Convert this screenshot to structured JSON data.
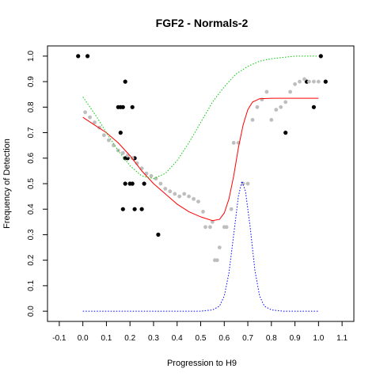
{
  "chart_data": {
    "type": "scatter",
    "title": "FGF2 - Normals-2",
    "xlabel": "Progression to H9",
    "ylabel": "Frequency of Detection",
    "xlim": [
      -0.15,
      1.15
    ],
    "ylim": [
      -0.04,
      1.04
    ],
    "x_ticks": [
      -0.1,
      0.0,
      0.1,
      0.2,
      0.3,
      0.4,
      0.5,
      0.6,
      0.7,
      0.8,
      0.9,
      1.0,
      1.1
    ],
    "x_tick_labels": [
      "-0.1",
      "0.0",
      "0.1",
      "0.2",
      "0.3",
      "0.4",
      "0.5",
      "0.6",
      "0.7",
      "0.8",
      "0.9",
      "1.0",
      "1.1"
    ],
    "y_ticks": [
      0.0,
      0.1,
      0.2,
      0.3,
      0.4,
      0.5,
      0.6,
      0.7,
      0.8,
      0.9,
      1.0
    ],
    "y_tick_labels": [
      "0.0",
      "0.1",
      "0.2",
      "0.3",
      "0.4",
      "0.5",
      "0.6",
      "0.7",
      "0.8",
      "0.9",
      "1.0"
    ],
    "colors": {
      "observed": "#000000",
      "smoothed": "#bebebe",
      "fit": "#ff0000",
      "upper_band": "#00cc00",
      "density": "#0000ff"
    },
    "series": [
      {
        "kind": "points",
        "color": "#000000",
        "points": [
          [
            -0.02,
            1.0
          ],
          [
            0.02,
            1.0
          ],
          [
            0.15,
            0.8
          ],
          [
            0.16,
            0.8
          ],
          [
            0.16,
            0.7
          ],
          [
            0.17,
            0.8
          ],
          [
            0.17,
            0.4
          ],
          [
            0.18,
            0.9
          ],
          [
            0.18,
            0.5
          ],
          [
            0.18,
            0.6
          ],
          [
            0.19,
            0.6
          ],
          [
            0.2,
            0.5
          ],
          [
            0.21,
            0.5
          ],
          [
            0.21,
            0.8
          ],
          [
            0.22,
            0.4
          ],
          [
            0.22,
            0.6
          ],
          [
            0.25,
            0.4
          ],
          [
            0.26,
            0.5
          ],
          [
            0.32,
            0.3
          ],
          [
            0.86,
            0.7
          ],
          [
            0.95,
            0.9
          ],
          [
            0.98,
            0.8
          ],
          [
            1.01,
            1.0
          ],
          [
            1.03,
            0.9
          ]
        ]
      },
      {
        "kind": "dense-points",
        "color": "#bebebe",
        "points": [
          [
            0.01,
            0.78
          ],
          [
            0.03,
            0.76
          ],
          [
            0.05,
            0.74
          ],
          [
            0.07,
            0.72
          ],
          [
            0.09,
            0.69
          ],
          [
            0.11,
            0.67
          ],
          [
            0.13,
            0.65
          ],
          [
            0.15,
            0.63
          ],
          [
            0.17,
            0.62
          ],
          [
            0.19,
            0.61
          ],
          [
            0.21,
            0.6
          ],
          [
            0.23,
            0.58
          ],
          [
            0.25,
            0.56
          ],
          [
            0.27,
            0.54
          ],
          [
            0.29,
            0.53
          ],
          [
            0.31,
            0.52
          ],
          [
            0.33,
            0.5
          ],
          [
            0.35,
            0.48
          ],
          [
            0.37,
            0.47
          ],
          [
            0.39,
            0.46
          ],
          [
            0.41,
            0.45
          ],
          [
            0.43,
            0.46
          ],
          [
            0.45,
            0.45
          ],
          [
            0.47,
            0.44
          ],
          [
            0.49,
            0.43
          ],
          [
            0.51,
            0.39
          ],
          [
            0.52,
            0.33
          ],
          [
            0.54,
            0.33
          ],
          [
            0.55,
            0.35
          ],
          [
            0.56,
            0.2
          ],
          [
            0.57,
            0.2
          ],
          [
            0.58,
            0.25
          ],
          [
            0.6,
            0.33
          ],
          [
            0.61,
            0.33
          ],
          [
            0.63,
            0.4
          ],
          [
            0.64,
            0.66
          ],
          [
            0.66,
            0.66
          ],
          [
            0.68,
            0.5
          ],
          [
            0.7,
            0.5
          ],
          [
            0.72,
            0.75
          ],
          [
            0.74,
            0.8
          ],
          [
            0.76,
            0.83
          ],
          [
            0.78,
            0.86
          ],
          [
            0.8,
            0.75
          ],
          [
            0.82,
            0.79
          ],
          [
            0.84,
            0.8
          ],
          [
            0.86,
            0.82
          ],
          [
            0.88,
            0.86
          ],
          [
            0.9,
            0.89
          ],
          [
            0.92,
            0.9
          ],
          [
            0.94,
            0.91
          ],
          [
            0.96,
            0.9
          ],
          [
            0.98,
            0.9
          ],
          [
            1.0,
            0.9
          ]
        ]
      },
      {
        "kind": "line",
        "color": "#ff0000",
        "points": [
          [
            0.0,
            0.76
          ],
          [
            0.05,
            0.73
          ],
          [
            0.1,
            0.7
          ],
          [
            0.15,
            0.66
          ],
          [
            0.2,
            0.61
          ],
          [
            0.25,
            0.55
          ],
          [
            0.3,
            0.5
          ],
          [
            0.35,
            0.46
          ],
          [
            0.4,
            0.42
          ],
          [
            0.45,
            0.39
          ],
          [
            0.5,
            0.37
          ],
          [
            0.55,
            0.355
          ],
          [
            0.58,
            0.36
          ],
          [
            0.6,
            0.385
          ],
          [
            0.62,
            0.44
          ],
          [
            0.64,
            0.53
          ],
          [
            0.66,
            0.64
          ],
          [
            0.68,
            0.73
          ],
          [
            0.7,
            0.79
          ],
          [
            0.72,
            0.82
          ],
          [
            0.75,
            0.833
          ],
          [
            0.8,
            0.835
          ],
          [
            0.9,
            0.835
          ],
          [
            1.0,
            0.835
          ]
        ]
      },
      {
        "kind": "dotted",
        "color": "#00cc00",
        "points": [
          [
            0.0,
            0.84
          ],
          [
            0.03,
            0.8
          ],
          [
            0.06,
            0.76
          ],
          [
            0.1,
            0.7
          ],
          [
            0.15,
            0.63
          ],
          [
            0.2,
            0.57
          ],
          [
            0.25,
            0.53
          ],
          [
            0.3,
            0.52
          ],
          [
            0.35,
            0.54
          ],
          [
            0.4,
            0.59
          ],
          [
            0.45,
            0.66
          ],
          [
            0.5,
            0.74
          ],
          [
            0.55,
            0.82
          ],
          [
            0.6,
            0.88
          ],
          [
            0.65,
            0.93
          ],
          [
            0.7,
            0.96
          ],
          [
            0.75,
            0.98
          ],
          [
            0.8,
            0.99
          ],
          [
            0.9,
            1.0
          ],
          [
            1.0,
            1.0
          ]
        ]
      },
      {
        "kind": "dotted",
        "color": "#0000ff",
        "points": [
          [
            0.0,
            0.0
          ],
          [
            0.5,
            0.0
          ],
          [
            0.55,
            0.005
          ],
          [
            0.58,
            0.02
          ],
          [
            0.6,
            0.06
          ],
          [
            0.62,
            0.15
          ],
          [
            0.64,
            0.3
          ],
          [
            0.66,
            0.45
          ],
          [
            0.675,
            0.51
          ],
          [
            0.69,
            0.47
          ],
          [
            0.71,
            0.33
          ],
          [
            0.73,
            0.16
          ],
          [
            0.75,
            0.06
          ],
          [
            0.77,
            0.02
          ],
          [
            0.8,
            0.005
          ],
          [
            0.85,
            0.0
          ],
          [
            1.0,
            0.0
          ]
        ]
      }
    ]
  }
}
